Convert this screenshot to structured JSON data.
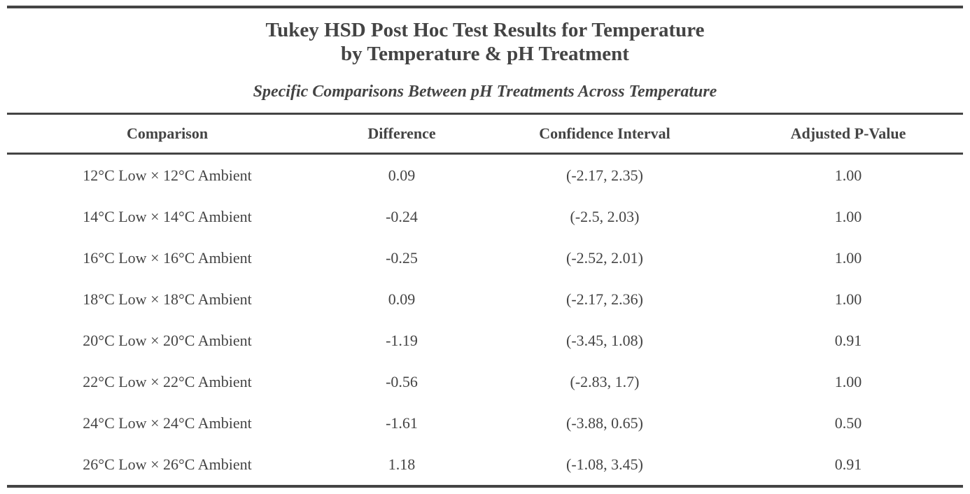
{
  "title_line1": "Tukey HSD Post Hoc Test Results for Temperature",
  "title_line2": "by Temperature & pH Treatment",
  "subtitle": "Specific Comparisons Between pH Treatments Across Temperature",
  "columns": [
    "Comparison",
    "Difference",
    "Confidence Interval",
    "Adjusted P-Value"
  ],
  "rows": [
    {
      "comparison": "12°C Low × 12°C Ambient",
      "difference": "0.09",
      "ci": "(-2.17, 2.35)",
      "p": "1.00"
    },
    {
      "comparison": "14°C Low × 14°C Ambient",
      "difference": "-0.24",
      "ci": "(-2.5, 2.03)",
      "p": "1.00"
    },
    {
      "comparison": "16°C Low × 16°C Ambient",
      "difference": "-0.25",
      "ci": "(-2.52, 2.01)",
      "p": "1.00"
    },
    {
      "comparison": "18°C Low × 18°C Ambient",
      "difference": "0.09",
      "ci": "(-2.17, 2.36)",
      "p": "1.00"
    },
    {
      "comparison": "20°C Low × 20°C Ambient",
      "difference": "-1.19",
      "ci": "(-3.45, 1.08)",
      "p": "0.91"
    },
    {
      "comparison": "22°C Low × 22°C Ambient",
      "difference": "-0.56",
      "ci": "(-2.83, 1.7)",
      "p": "1.00"
    },
    {
      "comparison": "24°C Low × 24°C Ambient",
      "difference": "-1.61",
      "ci": "(-3.88, 0.65)",
      "p": "0.50"
    },
    {
      "comparison": "26°C Low × 26°C Ambient",
      "difference": "1.18",
      "ci": "(-1.08, 3.45)",
      "p": "0.91"
    }
  ],
  "colors": {
    "text": "#444444",
    "rule": "#444444",
    "background": "#ffffff"
  }
}
